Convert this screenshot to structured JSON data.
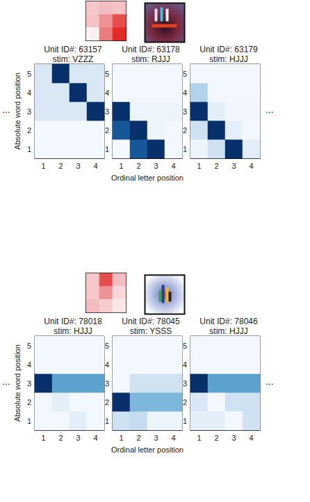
{
  "chart_data": {
    "type": "heatmap_grid",
    "x_label": "Ordinal letter position",
    "y_label": "Absolute word position",
    "ellipsis": "...",
    "rows": [
      {
        "weights": {
          "type": "heatmap",
          "tick_labels": false,
          "color_range": [
            -1,
            1
          ],
          "cells": [
            [
              0.2,
              0.3,
              0.25
            ],
            [
              0.25,
              0.5,
              0.8
            ],
            [
              -0.2,
              0.6,
              0.95
            ]
          ]
        },
        "charts": [
          {
            "type": "heatmap",
            "title": "Unit ID#: 63157",
            "subtitle": "stim: VZZZ",
            "xticks": [
              1,
              2,
              3,
              4
            ],
            "yticks": [
              1,
              2,
              3,
              4,
              5
            ],
            "color_range": [
              0,
              1
            ],
            "cells": [
              [
                0.02,
                0.02,
                0.02,
                0.02
              ],
              [
                0.02,
                0.02,
                0.02,
                0.02
              ],
              [
                0.15,
                0.15,
                0.15,
                1
              ],
              [
                0.15,
                0.15,
                1,
                0.15
              ],
              [
                0.15,
                1,
                0.15,
                0.15
              ]
            ]
          },
          {
            "type": "heatmap",
            "title": "Unit ID#: 63178",
            "subtitle": "stim: RJJJ",
            "xticks": [
              1,
              2,
              3,
              4
            ],
            "yticks": [
              1,
              2,
              3,
              4,
              5
            ],
            "color_range": [
              0,
              1
            ],
            "cells": [
              [
                0.02,
                0.85,
                1,
                0.02
              ],
              [
                0.85,
                1,
                0.05,
                0.02
              ],
              [
                1,
                0.05,
                0.05,
                0.05
              ],
              [
                0.02,
                0.02,
                0.02,
                0.02
              ],
              [
                0.02,
                0.02,
                0.02,
                0.02
              ]
            ]
          },
          {
            "type": "heatmap",
            "title": "Unit ID#: 63179",
            "subtitle": "stim: HJJJ",
            "xticks": [
              1,
              2,
              3,
              4
            ],
            "yticks": [
              1,
              2,
              3,
              4,
              5
            ],
            "color_range": [
              0,
              1
            ],
            "cells": [
              [
                0.05,
                0.2,
                1,
                0.1
              ],
              [
                0.2,
                1,
                0.1,
                0.02
              ],
              [
                1,
                0.1,
                0.03,
                0.03
              ],
              [
                0.3,
                0.02,
                0.02,
                0.02
              ],
              [
                0.02,
                0.02,
                0.02,
                0.02
              ]
            ]
          }
        ]
      },
      {
        "weights": {
          "type": "heatmap",
          "tick_labels": false,
          "color_range": [
            -1,
            1
          ],
          "cells": [
            [
              0.2,
              0.8,
              0.3
            ],
            [
              0.2,
              0.5,
              0.05
            ],
            [
              0.3,
              0.15,
              -0.1
            ]
          ]
        },
        "charts": [
          {
            "type": "heatmap",
            "title": "Unit ID#: 78018",
            "subtitle": "stim: HJJJ",
            "xticks": [
              1,
              2,
              3,
              4
            ],
            "yticks": [
              1,
              2,
              3,
              4,
              5
            ],
            "color_range": [
              0,
              1
            ],
            "cells": [
              [
                0.02,
                0.02,
                0.1,
                0.02
              ],
              [
                0.02,
                0.1,
                0.02,
                0.02
              ],
              [
                1,
                0.55,
                0.55,
                0.55
              ],
              [
                0.02,
                0.02,
                0.02,
                0.02
              ],
              [
                0.02,
                0.02,
                0.02,
                0.02
              ]
            ]
          },
          {
            "type": "heatmap",
            "title": "Unit ID#: 78045",
            "subtitle": "stim: YSSS",
            "xticks": [
              1,
              2,
              3,
              4
            ],
            "yticks": [
              1,
              2,
              3,
              4,
              5
            ],
            "color_range": [
              0,
              1
            ],
            "cells": [
              [
                0.2,
                0.25,
                0.05,
                0.05
              ],
              [
                1,
                0.45,
                0.45,
                0.45
              ],
              [
                0.02,
                0.2,
                0.2,
                0.2
              ],
              [
                0.02,
                0.02,
                0.02,
                0.02
              ],
              [
                0.02,
                0.02,
                0.02,
                0.02
              ]
            ]
          },
          {
            "type": "heatmap",
            "title": "Unit ID#: 78046",
            "subtitle": "stim: HJJJ",
            "xticks": [
              1,
              2,
              3,
              4
            ],
            "yticks": [
              1,
              2,
              3,
              4,
              5
            ],
            "color_range": [
              0,
              1
            ],
            "cells": [
              [
                0.1,
                0.1,
                0.02,
                0.2
              ],
              [
                0.15,
                0.02,
                0.2,
                0.2
              ],
              [
                1,
                0.55,
                0.55,
                0.55
              ],
              [
                0.02,
                0.02,
                0.02,
                0.02
              ],
              [
                0.02,
                0.02,
                0.02,
                0.02
              ]
            ]
          }
        ]
      }
    ]
  }
}
